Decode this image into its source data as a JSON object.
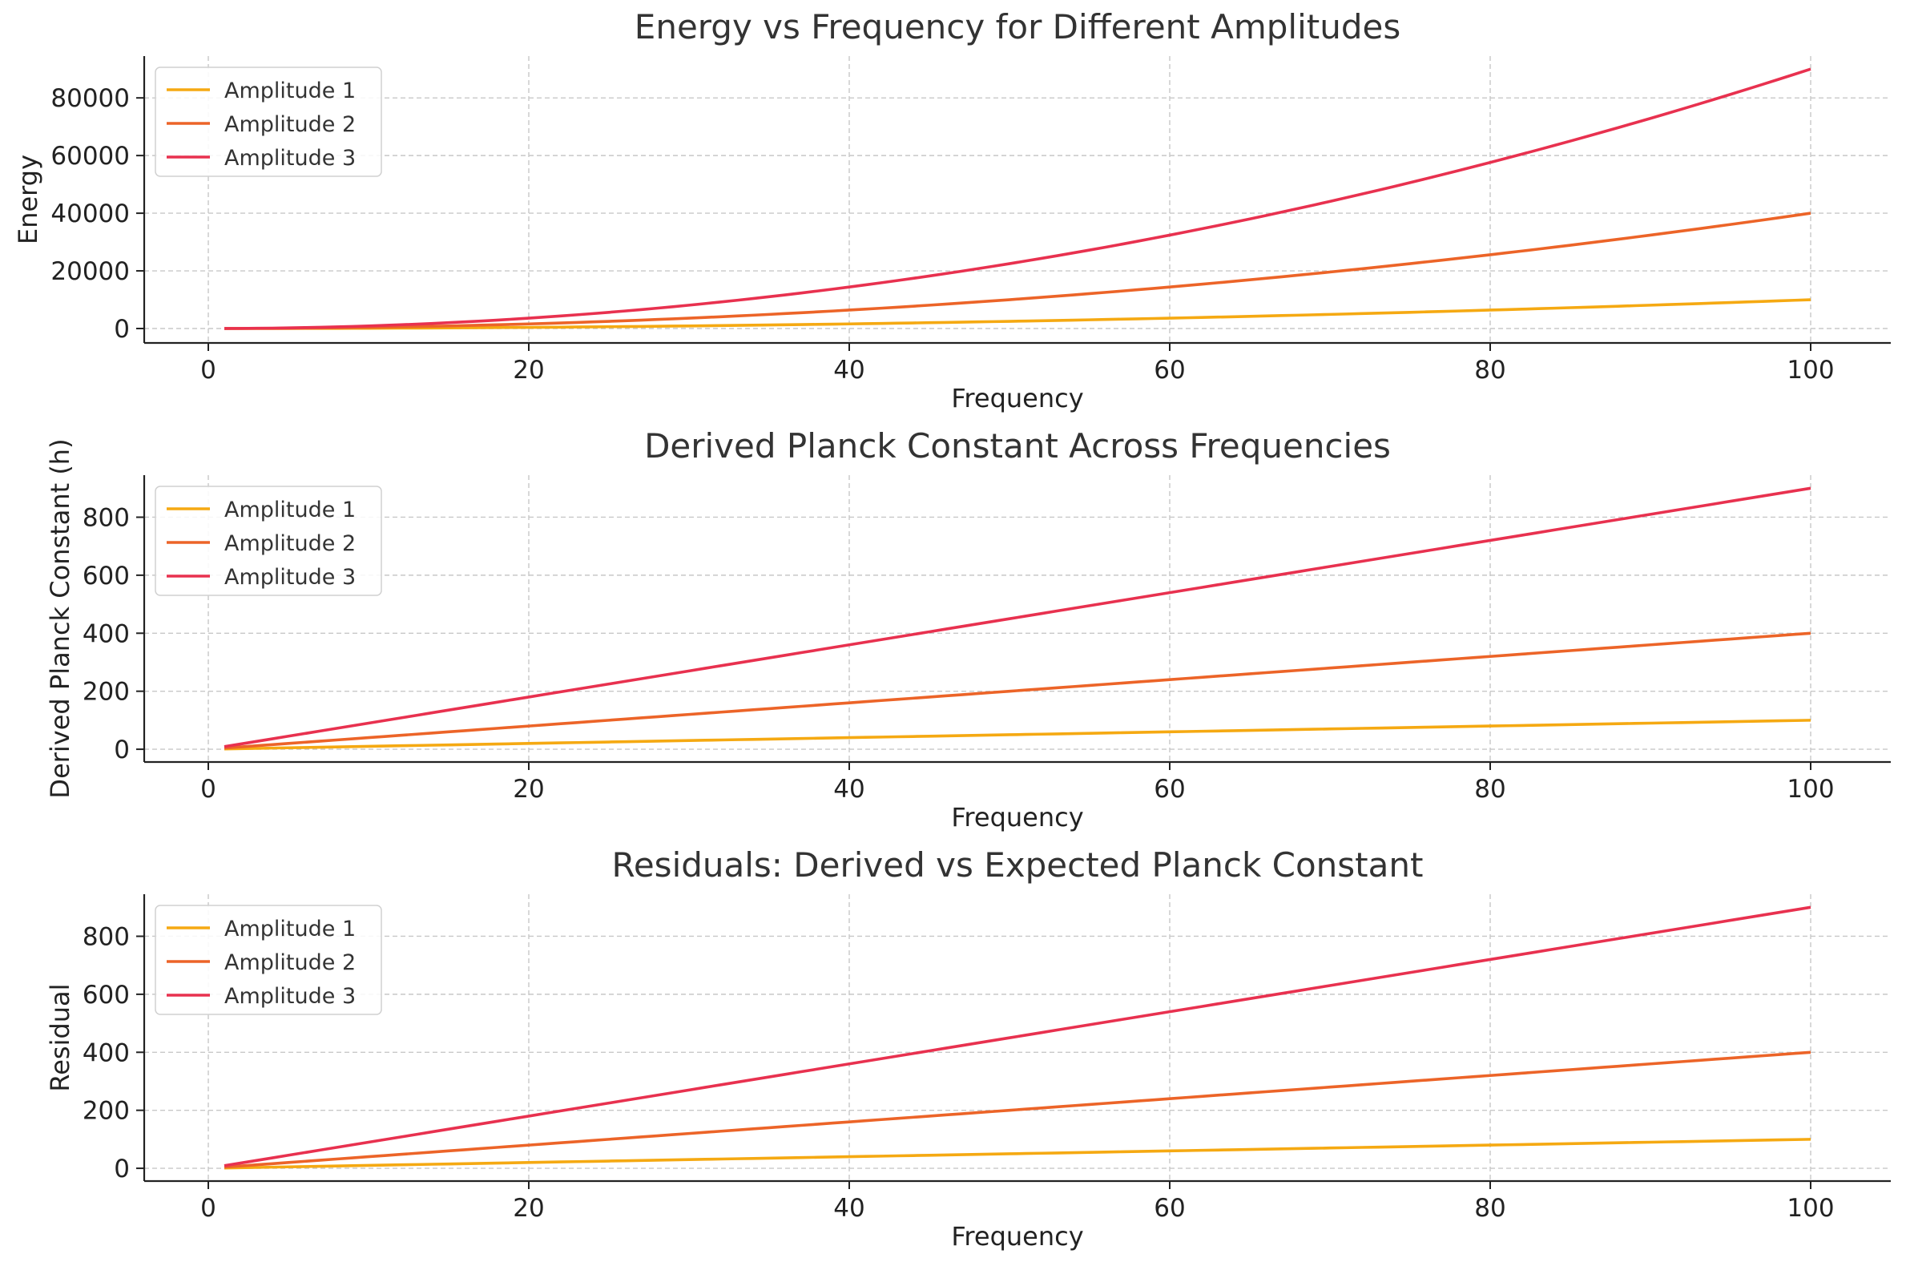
{
  "colors": {
    "amplitude_1": "#F5A912",
    "amplitude_2": "#EC6428",
    "amplitude_3": "#E8314F",
    "grid": "#c8c8c8",
    "axis": "#222222"
  },
  "chart_data": [
    {
      "type": "line",
      "title": "Energy vs Frequency for Different Amplitudes",
      "xlabel": "Frequency",
      "ylabel": "Energy",
      "xlim": [
        -4,
        105
      ],
      "ylim": [
        -5000,
        94500
      ],
      "xticks": [
        0,
        20,
        40,
        60,
        80,
        100
      ],
      "xtick_labels": [
        "0",
        "20",
        "40",
        "60",
        "80",
        "100"
      ],
      "yticks": [
        0,
        20000,
        40000,
        60000,
        80000
      ],
      "ytick_labels": [
        "0",
        "20000",
        "40000",
        "60000",
        "80000"
      ],
      "grid": true,
      "legend_position": "top-left",
      "x": {
        "start": 1,
        "end": 100,
        "step": 1
      },
      "series": [
        {
          "name": "Amplitude 1",
          "formula": "x^2",
          "color": "#F5A912"
        },
        {
          "name": "Amplitude 2",
          "formula": "4*x^2",
          "color": "#EC6428"
        },
        {
          "name": "Amplitude 3",
          "formula": "9*x^2",
          "color": "#E8314F"
        }
      ]
    },
    {
      "type": "line",
      "title": "Derived Planck Constant Across Frequencies",
      "xlabel": "Frequency",
      "ylabel": "Derived Planck Constant (h)",
      "xlim": [
        -4,
        105
      ],
      "ylim": [
        -44,
        945
      ],
      "xticks": [
        0,
        20,
        40,
        60,
        80,
        100
      ],
      "xtick_labels": [
        "0",
        "20",
        "40",
        "60",
        "80",
        "100"
      ],
      "yticks": [
        0,
        200,
        400,
        600,
        800
      ],
      "ytick_labels": [
        "0",
        "200",
        "400",
        "600",
        "800"
      ],
      "grid": true,
      "legend_position": "top-left",
      "x": {
        "start": 1,
        "end": 100,
        "step": 1
      },
      "series": [
        {
          "name": "Amplitude 1",
          "formula": "x",
          "color": "#F5A912"
        },
        {
          "name": "Amplitude 2",
          "formula": "4*x",
          "color": "#EC6428"
        },
        {
          "name": "Amplitude 3",
          "formula": "9*x",
          "color": "#E8314F"
        }
      ]
    },
    {
      "type": "line",
      "title": "Residuals: Derived vs Expected Planck Constant",
      "xlabel": "Frequency",
      "ylabel": "Residual",
      "xlim": [
        -4,
        105
      ],
      "ylim": [
        -44,
        945
      ],
      "xticks": [
        0,
        20,
        40,
        60,
        80,
        100
      ],
      "xtick_labels": [
        "0",
        "20",
        "40",
        "60",
        "80",
        "100"
      ],
      "yticks": [
        0,
        200,
        400,
        600,
        800
      ],
      "ytick_labels": [
        "0",
        "200",
        "400",
        "600",
        "800"
      ],
      "grid": true,
      "legend_position": "top-left",
      "x": {
        "start": 1,
        "end": 100,
        "step": 1
      },
      "series": [
        {
          "name": "Amplitude 1",
          "formula": "x",
          "color": "#F5A912"
        },
        {
          "name": "Amplitude 2",
          "formula": "4*x",
          "color": "#EC6428"
        },
        {
          "name": "Amplitude 3",
          "formula": "9*x",
          "color": "#E8314F"
        }
      ]
    }
  ]
}
